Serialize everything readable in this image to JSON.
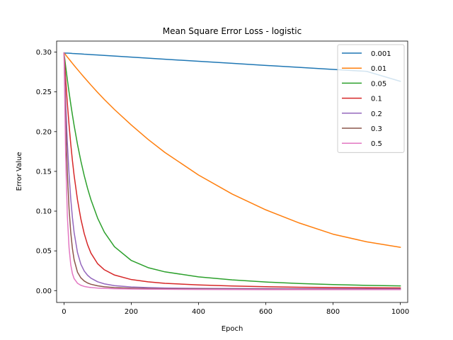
{
  "chart_data": {
    "type": "line",
    "title": "Mean Square Error Loss - logistic",
    "xlabel": "Epoch",
    "ylabel": "Error Value",
    "xlim": [
      -22,
      1022
    ],
    "ylim": [
      -0.0149,
      0.3139
    ],
    "xticks": [
      0,
      200,
      400,
      600,
      800,
      1000
    ],
    "xtick_labels": [
      "0",
      "200",
      "400",
      "600",
      "800",
      "1000"
    ],
    "yticks": [
      0.0,
      0.05,
      0.1,
      0.15,
      0.2,
      0.25,
      0.3
    ],
    "ytick_labels": [
      "0.00",
      "0.05",
      "0.10",
      "0.15",
      "0.20",
      "0.25",
      "0.30"
    ],
    "grid": false,
    "legend_position": "top-right",
    "x": [
      0,
      5,
      10,
      15,
      20,
      25,
      30,
      40,
      50,
      60,
      70,
      80,
      100,
      120,
      150,
      200,
      250,
      300,
      400,
      500,
      600,
      700,
      800,
      900,
      1000
    ],
    "series": [
      {
        "name": "0.001",
        "color": "#1f77b4",
        "values": [
          0.299,
          0.2988,
          0.2987,
          0.2986,
          0.2985,
          0.2983,
          0.2982,
          0.298,
          0.2977,
          0.2974,
          0.2972,
          0.2969,
          0.2964,
          0.2958,
          0.2951,
          0.2937,
          0.2924,
          0.2911,
          0.2885,
          0.2859,
          0.2833,
          0.2808,
          0.2783,
          0.2758,
          0.2633
        ]
      },
      {
        "name": "0.01",
        "color": "#ff7f0e",
        "values": [
          0.299,
          0.2965,
          0.2938,
          0.2912,
          0.2885,
          0.2859,
          0.2833,
          0.2782,
          0.2732,
          0.2682,
          0.2634,
          0.2586,
          0.2493,
          0.2404,
          0.2278,
          0.2084,
          0.1902,
          0.1738,
          0.1454,
          0.1215,
          0.1016,
          0.085,
          0.071,
          0.0614,
          0.0545
        ]
      },
      {
        "name": "0.05",
        "color": "#2ca02c",
        "values": [
          0.299,
          0.2815,
          0.265,
          0.2494,
          0.2347,
          0.2209,
          0.2079,
          0.1841,
          0.1632,
          0.1448,
          0.1286,
          0.1144,
          0.0911,
          0.0735,
          0.0552,
          0.0379,
          0.0289,
          0.0236,
          0.0173,
          0.0135,
          0.0108,
          0.0089,
          0.0076,
          0.0066,
          0.0059
        ]
      },
      {
        "name": "0.1",
        "color": "#d62728",
        "values": [
          0.299,
          0.2652,
          0.235,
          0.2082,
          0.1845,
          0.1635,
          0.145,
          0.1142,
          0.0903,
          0.0718,
          0.0578,
          0.0472,
          0.0338,
          0.0262,
          0.0196,
          0.0139,
          0.011,
          0.0092,
          0.0071,
          0.0058,
          0.0049,
          0.0043,
          0.0039,
          0.0036,
          0.0034
        ]
      },
      {
        "name": "0.2",
        "color": "#9467bd",
        "values": [
          0.299,
          0.2353,
          0.1853,
          0.1461,
          0.1155,
          0.0917,
          0.0732,
          0.0479,
          0.0333,
          0.0247,
          0.0193,
          0.0157,
          0.0111,
          0.0085,
          0.0063,
          0.0046,
          0.0038,
          0.0033,
          0.0028,
          0.0026,
          0.0025,
          0.0024,
          0.0024,
          0.0023,
          0.0023
        ]
      },
      {
        "name": "0.3",
        "color": "#8c564b",
        "values": [
          0.299,
          0.209,
          0.1465,
          0.1031,
          0.0732,
          0.0527,
          0.0389,
          0.0232,
          0.0161,
          0.0121,
          0.0096,
          0.008,
          0.006,
          0.0048,
          0.0038,
          0.003,
          0.0026,
          0.0023,
          0.002,
          0.0018,
          0.0017,
          0.0016,
          0.0016,
          0.0016,
          0.0016
        ]
      },
      {
        "name": "0.5",
        "color": "#e377c2",
        "values": [
          0.299,
          0.1661,
          0.0932,
          0.0538,
          0.0326,
          0.0213,
          0.0151,
          0.0093,
          0.0067,
          0.0053,
          0.0045,
          0.0039,
          0.0032,
          0.0028,
          0.0024,
          0.002,
          0.0018,
          0.0017,
          0.0015,
          0.0014,
          0.0013,
          0.0013,
          0.0012,
          0.0012,
          0.0012
        ]
      }
    ]
  }
}
